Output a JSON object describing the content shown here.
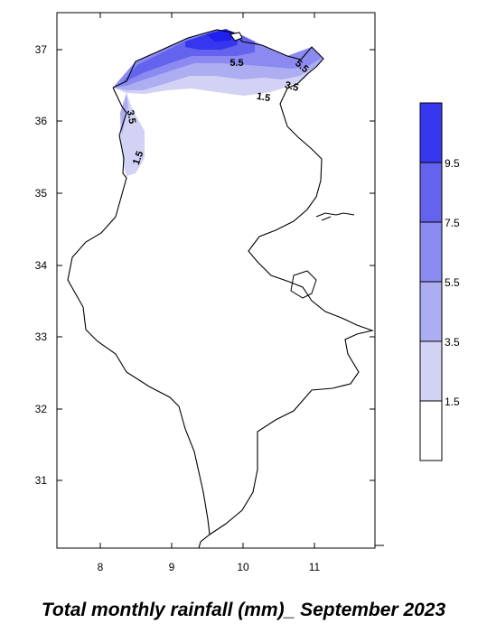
{
  "map": {
    "x_ticks": [
      "8",
      "9",
      "10",
      "11"
    ],
    "y_ticks": [
      "37",
      "36",
      "35",
      "34",
      "33",
      "32",
      "31"
    ],
    "contour_labels": [
      "5.5",
      "5.5",
      "3.5",
      "1.5",
      "3.5",
      "1.5"
    ]
  },
  "legend": {
    "levels": [
      "9.5",
      "7.5",
      "5.5",
      "3.5",
      "1.5"
    ],
    "colors": [
      "#ffffff",
      "#d2d2f5",
      "#adadf2",
      "#8a8af0",
      "#6363ee",
      "#3636ee",
      "#2020ee"
    ]
  },
  "caption": "Total monthly rainfall (mm)_ September 2023"
}
